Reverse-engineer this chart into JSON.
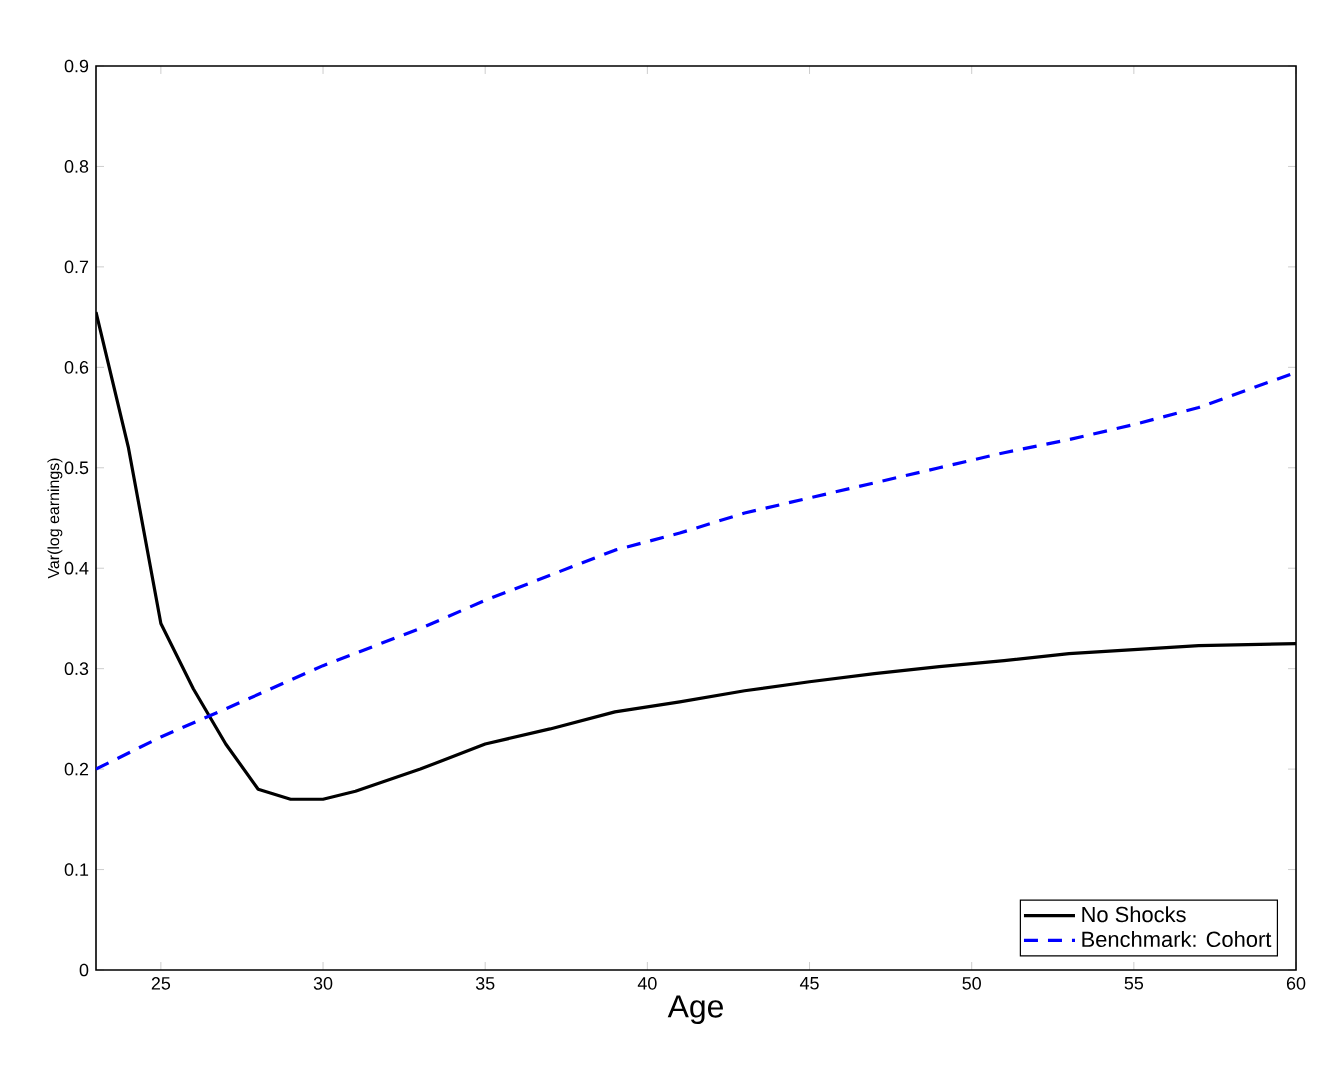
{
  "chart_data": {
    "type": "line",
    "xlabel": "Age",
    "ylabel": "Var(log earnings)",
    "xlim": [
      23,
      60
    ],
    "xticks": [
      25,
      30,
      35,
      40,
      45,
      50,
      55,
      60
    ],
    "ylim": [
      0,
      0.9
    ],
    "yticks": [
      0,
      0.1,
      0.2,
      0.3,
      0.4,
      0.5,
      0.6,
      0.7,
      0.8,
      0.9
    ],
    "legend": "bottom right",
    "grid": false,
    "series": [
      {
        "name": "No Shocks",
        "color": "#000000",
        "line_style": "solid",
        "x": [
          23,
          24,
          25,
          26,
          27,
          28,
          29,
          30,
          31,
          33,
          35,
          37,
          39,
          41,
          43,
          45,
          47,
          49,
          51,
          53,
          55,
          57,
          60
        ],
        "values": [
          0.655,
          0.52,
          0.345,
          0.28,
          0.225,
          0.18,
          0.17,
          0.17,
          0.178,
          0.2,
          0.225,
          0.24,
          0.257,
          0.267,
          0.278,
          0.287,
          0.295,
          0.302,
          0.308,
          0.315,
          0.319,
          0.323,
          0.325
        ]
      },
      {
        "name": "Benchmark: Cohort",
        "color": "#0000ff",
        "line_style": "dashed",
        "x": [
          23,
          25,
          27,
          30,
          33,
          35,
          37,
          39,
          41,
          43,
          45,
          47,
          49,
          51,
          53,
          55,
          57,
          60
        ],
        "values": [
          0.2,
          0.232,
          0.26,
          0.303,
          0.34,
          0.368,
          0.393,
          0.418,
          0.435,
          0.455,
          0.47,
          0.485,
          0.5,
          0.515,
          0.528,
          0.543,
          0.56,
          0.595
        ]
      }
    ]
  }
}
